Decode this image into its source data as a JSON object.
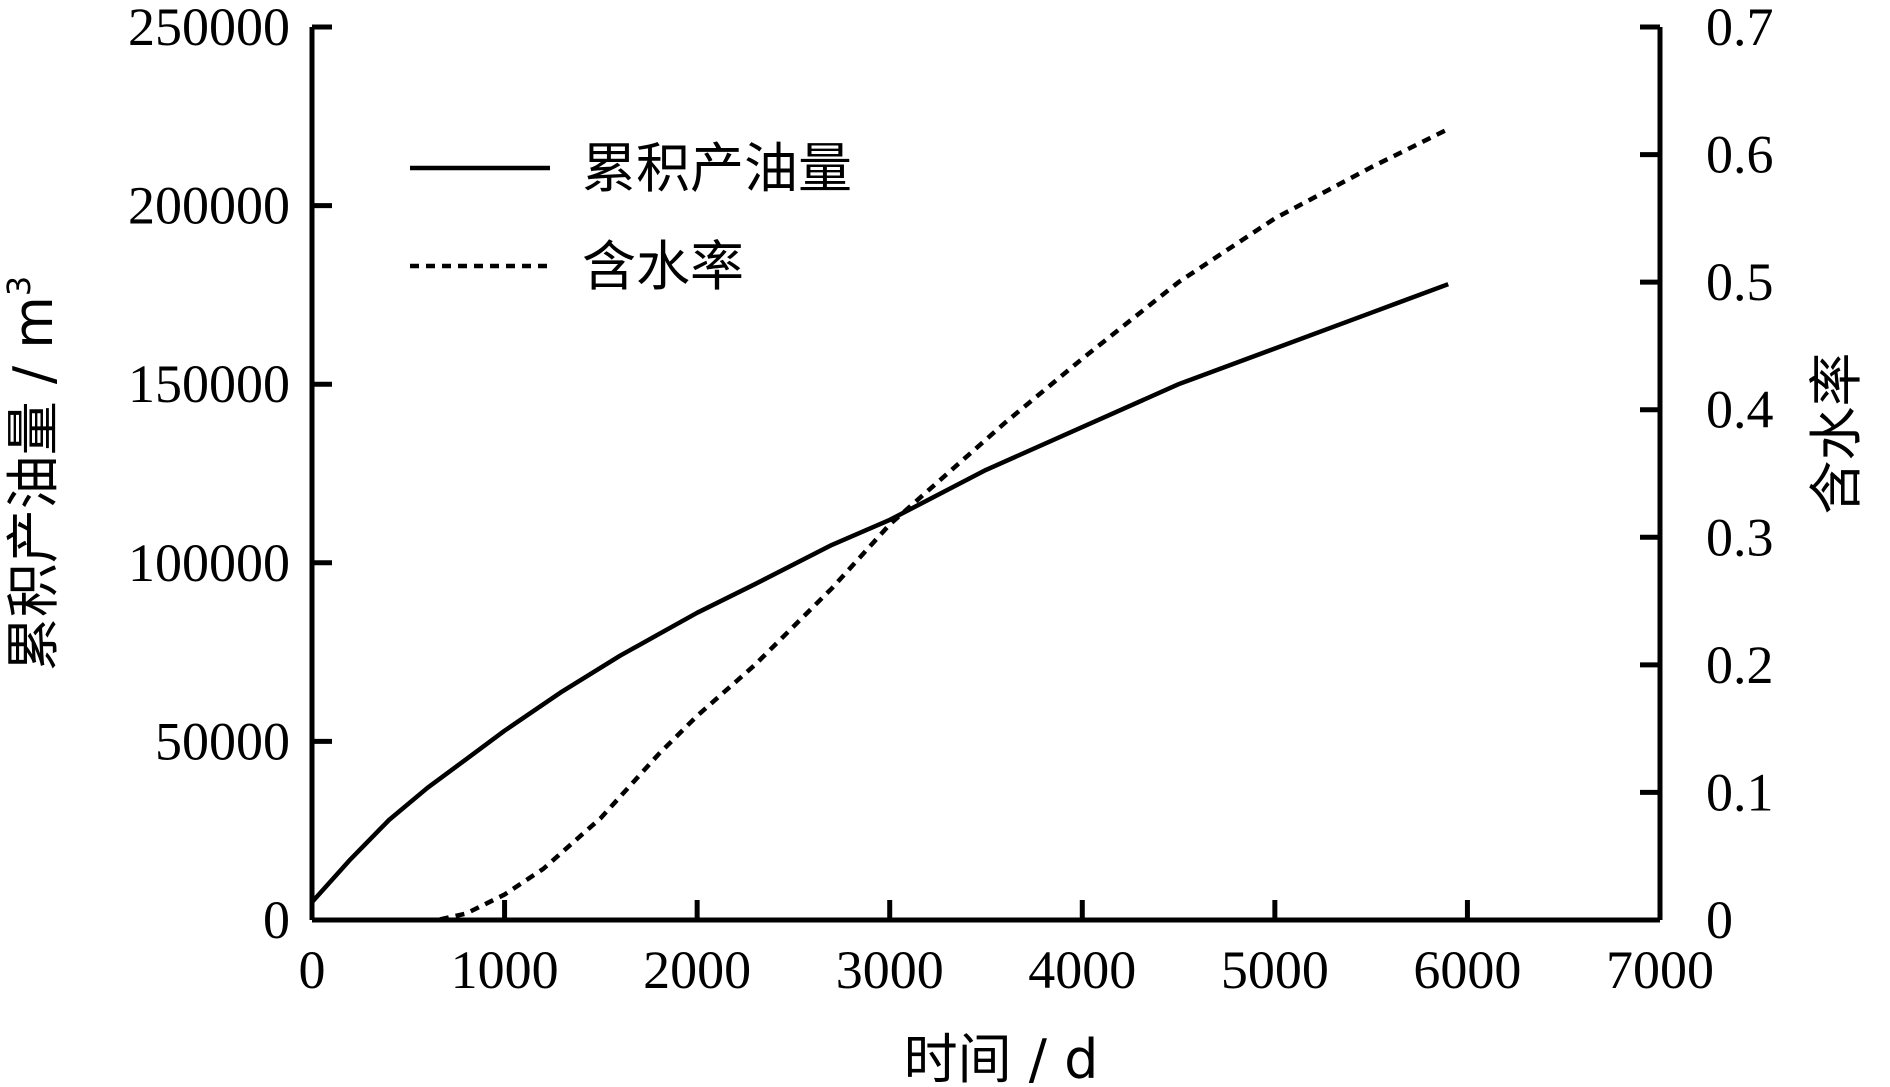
{
  "chart_data": {
    "type": "line",
    "x_label": "时间 / d",
    "y_left_label": "累积产油量 / m",
    "y_left_label_sup": "3",
    "y_right_label": "含水率",
    "xlim": [
      0,
      7000
    ],
    "ylim_left": [
      0,
      250000
    ],
    "ylim_right": [
      0,
      0.7
    ],
    "x_ticks": [
      "0",
      "1000",
      "2000",
      "3000",
      "4000",
      "5000",
      "6000",
      "7000"
    ],
    "y_left_ticks": [
      "0",
      "50000",
      "100000",
      "150000",
      "200000",
      "250000"
    ],
    "y_right_ticks": [
      "0",
      "0.1",
      "0.2",
      "0.3",
      "0.4",
      "0.5",
      "0.6",
      "0.7"
    ],
    "grid": false,
    "legend_position": "top-left",
    "series": [
      {
        "name": "累积产油量",
        "axis": "left",
        "style": "solid",
        "color": "#000000",
        "x": [
          0,
          200,
          400,
          600,
          800,
          1000,
          1300,
          1600,
          2000,
          2300,
          2700,
          3000,
          3500,
          4000,
          4500,
          5000,
          5500,
          5900
        ],
        "y": [
          5000,
          17000,
          28000,
          37000,
          45000,
          53000,
          64000,
          74000,
          86000,
          94000,
          105000,
          112000,
          126000,
          138000,
          150000,
          160000,
          170000,
          178000
        ]
      },
      {
        "name": "含水率",
        "axis": "right",
        "style": "dotted",
        "color": "#000000",
        "x": [
          0,
          650,
          800,
          1000,
          1200,
          1500,
          1800,
          2000,
          2300,
          2700,
          3000,
          3300,
          3600,
          4000,
          4500,
          5000,
          5500,
          5900
        ],
        "y": [
          0.0,
          0.0,
          0.005,
          0.02,
          0.04,
          0.08,
          0.13,
          0.16,
          0.2,
          0.26,
          0.31,
          0.35,
          0.39,
          0.44,
          0.5,
          0.55,
          0.59,
          0.62
        ]
      }
    ]
  }
}
